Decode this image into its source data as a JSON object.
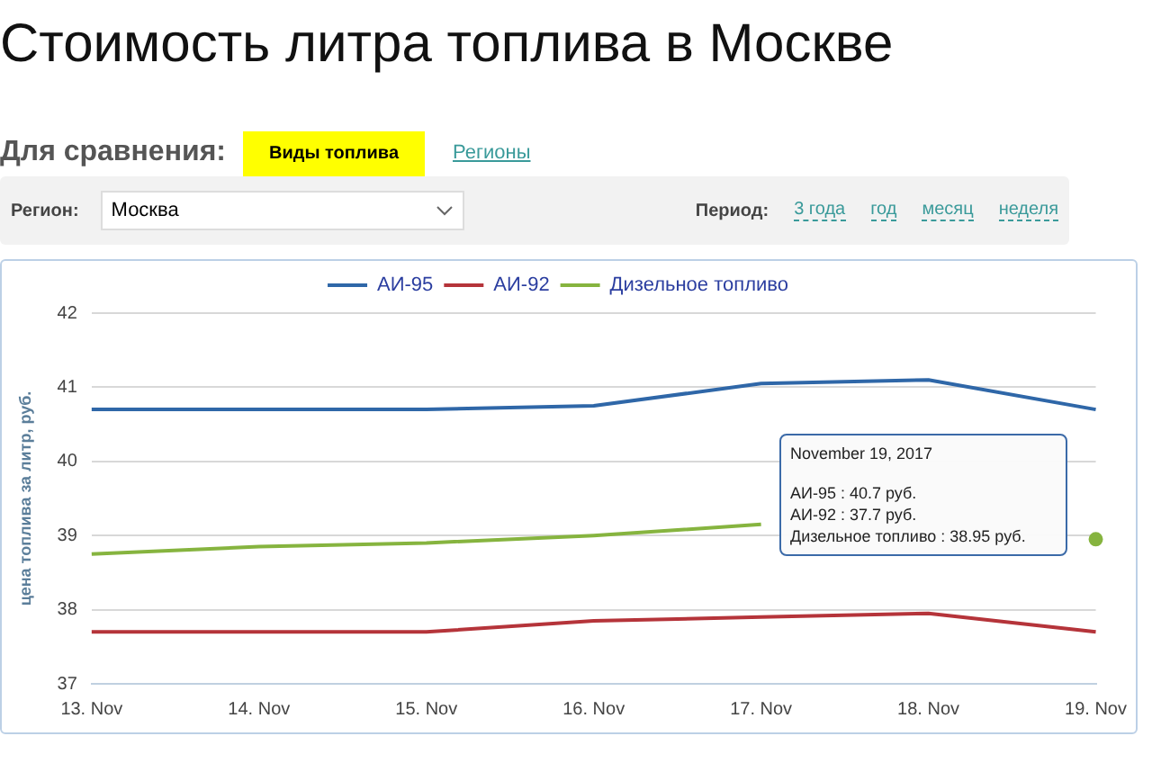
{
  "chart_data": {
    "type": "line",
    "title": "Стоимость литра топлива в Москве",
    "ylabel": "цена топлива за литр, руб.",
    "categories": [
      "13. Nov",
      "14. Nov",
      "15. Nov",
      "16. Nov",
      "17. Nov",
      "18. Nov",
      "19. Nov"
    ],
    "series": [
      {
        "name": "АИ-95",
        "color": "#2f67a8",
        "values": [
          40.7,
          40.7,
          40.7,
          40.75,
          41.05,
          41.1,
          40.7
        ]
      },
      {
        "name": "АИ-92",
        "color": "#b5343a",
        "values": [
          37.7,
          37.7,
          37.7,
          37.85,
          37.9,
          37.95,
          37.7
        ]
      },
      {
        "name": "Дизельное топливо",
        "color": "#86b43f",
        "values": [
          38.75,
          38.85,
          38.9,
          39.0,
          39.15,
          null,
          38.95
        ]
      }
    ],
    "ylim": [
      37,
      42
    ],
    "yticks": [
      37,
      38,
      39,
      40,
      41,
      42
    ],
    "grid": "y",
    "legend": "top",
    "marker": "none",
    "line_style": "solid",
    "annotations": [
      "Для сравнения:",
      "Виды топлива",
      "Регионы",
      "Регион:",
      "Москва",
      "Период:",
      "3 года",
      "год",
      "месяц",
      "неделя",
      "November 19, 2017",
      "АИ-95 : 40.7 руб.",
      "АИ-92 : 37.7 руб.",
      "Дизельное топливо : 38.95 руб."
    ]
  }
}
